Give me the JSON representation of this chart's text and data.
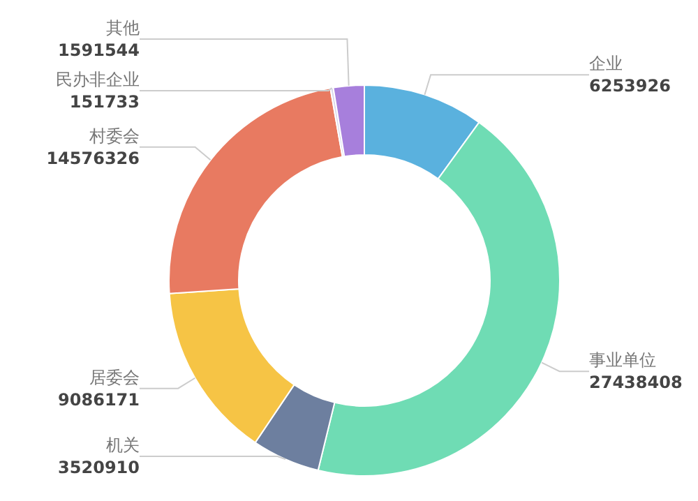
{
  "chart_data": {
    "type": "donut",
    "categories": [
      "企业",
      "事业单位",
      "机关",
      "居委会",
      "村委会",
      "民办非企业",
      "其他"
    ],
    "values": [
      6253926,
      27438408,
      3520910,
      9086171,
      14576326,
      151733,
      1591544
    ],
    "colors": [
      "#5ab1de",
      "#6fdcb4",
      "#6d7f9f",
      "#f6c445",
      "#e87a61",
      "#d8d6ea",
      "#a77fdc"
    ],
    "data_labels": true
  }
}
